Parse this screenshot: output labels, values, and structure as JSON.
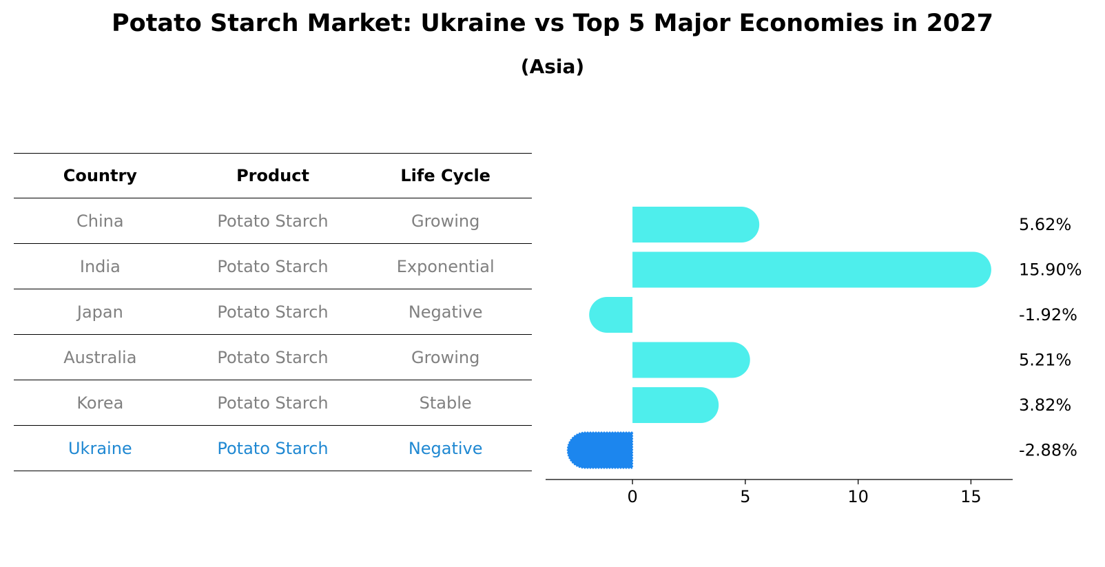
{
  "title": "Potato Starch Market: Ukraine vs Top 5 Major Economies in 2027",
  "subtitle": "(Asia)",
  "table": {
    "headers": [
      "Country",
      "Product",
      "Life Cycle"
    ],
    "rows": [
      {
        "country": "China",
        "product": "Potato Starch",
        "life_cycle": "Growing"
      },
      {
        "country": "India",
        "product": "Potato Starch",
        "life_cycle": "Exponential"
      },
      {
        "country": "Japan",
        "product": "Potato Starch",
        "life_cycle": "Negative"
      },
      {
        "country": "Australia",
        "product": "Potato Starch",
        "life_cycle": "Growing"
      },
      {
        "country": "Korea",
        "product": "Potato Starch",
        "life_cycle": "Stable"
      },
      {
        "country": "Ukraine",
        "product": "Potato Starch",
        "life_cycle": "Negative"
      }
    ],
    "highlight_country": "Ukraine"
  },
  "colors": {
    "bar": "#4eeeec",
    "highlight_bar": "#1c86ee",
    "highlight_text": "#1f88d2",
    "row_text": "#808080"
  },
  "chart_data": {
    "type": "bar",
    "orientation": "horizontal",
    "categories": [
      "China",
      "India",
      "Japan",
      "Australia",
      "Korea",
      "Ukraine"
    ],
    "values": [
      5.62,
      15.9,
      -1.92,
      5.21,
      3.82,
      -2.88
    ],
    "value_labels": [
      "5.62%",
      "15.90%",
      "-1.92%",
      "5.21%",
      "3.82%",
      "-2.88%"
    ],
    "xticks": [
      0,
      5,
      10,
      15
    ],
    "xlim": [
      -3.85,
      16.85
    ],
    "highlight": "Ukraine",
    "xlabel": "",
    "ylabel": ""
  }
}
